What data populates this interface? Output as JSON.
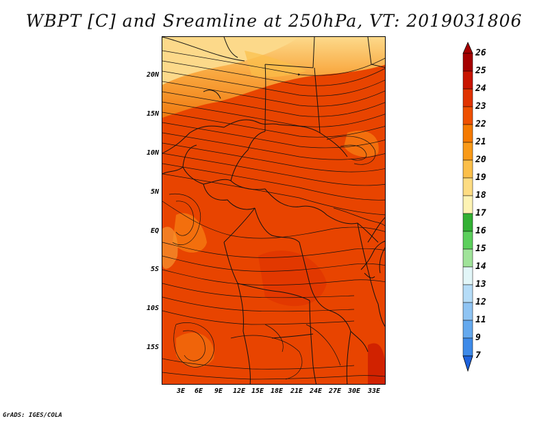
{
  "title": "WBPT [C] and Sreamline at 250hPa, VT: 2019031806",
  "credit": "GrADS: IGES/COLA",
  "lat_labels": [
    "20N",
    "15N",
    "10N",
    "5N",
    "EQ",
    "5S",
    "10S",
    "15S"
  ],
  "lon_labels": [
    "3E",
    "6E",
    "9E",
    "12E",
    "15E",
    "18E",
    "21E",
    "24E",
    "27E",
    "30E",
    "33E"
  ],
  "colorbar": {
    "labels": [
      "26",
      "25",
      "24",
      "23",
      "22",
      "21",
      "20",
      "19",
      "18",
      "17",
      "16",
      "15",
      "14",
      "13",
      "12",
      "11",
      "9",
      "7"
    ],
    "colors": [
      "#a50000",
      "#c81400",
      "#e03300",
      "#ee5000",
      "#f57a00",
      "#f99a18",
      "#fbbf4a",
      "#fddc82",
      "#fdf3b4",
      "#33b034",
      "#5ccf5c",
      "#a0e39a",
      "#e2f6f8",
      "#b5dcf7",
      "#8fc4f3",
      "#65a9ee",
      "#3e8ae8",
      "#1e62dc"
    ],
    "min_color": "#1e62dc",
    "max_color": "#a50000"
  },
  "map_colors": {
    "deep": "#e23a00",
    "mid": "#ee5200",
    "light": "#f57b10",
    "pale": "#f9a840",
    "paler": "#fbd07a"
  }
}
